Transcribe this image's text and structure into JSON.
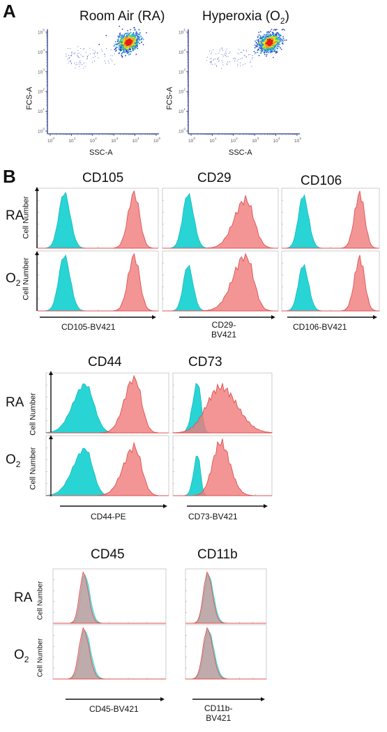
{
  "panels": {
    "a": "A",
    "b": "B"
  },
  "conditions": {
    "ra": "RA",
    "o2_main": "O",
    "o2_sub": "2"
  },
  "colors": {
    "ra": "#1ed2d2",
    "o2": "#f07a7a",
    "density_hi": "#e0201a",
    "density_mid": "#f2e21a",
    "density_lo": "#2a40c8",
    "axis": "#2a3a8a"
  },
  "scatter": {
    "ra_title": "Room Air (RA)",
    "o2_title_main": "Hyperoxia (O",
    "o2_title_sub": "2",
    "o2_title_end": ")",
    "xlabel": "SSC-A",
    "ylabel": "FCS-A",
    "tick_base": "10",
    "tick_exps": [
      "0",
      "1",
      "2",
      "3",
      "4",
      "5"
    ]
  },
  "histograms": {
    "ylabel": "Cell Number",
    "markers": [
      {
        "name": "CD105",
        "xlabel": "CD105-BV421"
      },
      {
        "name": "CD29",
        "xlabel_1": "CD29-",
        "xlabel_2": "BV421"
      },
      {
        "name": "CD106",
        "xlabel": "CD106-BV421"
      },
      {
        "name": "CD44",
        "xlabel": "CD44-PE"
      },
      {
        "name": "CD73",
        "xlabel": "CD73-BV421"
      },
      {
        "name": "CD45",
        "xlabel": "CD45-BV421"
      },
      {
        "name": "CD11b",
        "xlabel_1": "CD11b-",
        "xlabel_2": "BV421"
      }
    ]
  },
  "chart_data": [
    {
      "type": "scatter",
      "title": "Room Air (RA)",
      "xlabel": "SSC-A",
      "ylabel": "FCS-A",
      "xscale": "log",
      "yscale": "log",
      "xlim": [
        1,
        100000
      ],
      "ylim": [
        1,
        100000
      ],
      "cluster_center": [
        5000,
        30000
      ]
    },
    {
      "type": "scatter",
      "title": "Hyperoxia (O2)",
      "xlabel": "SSC-A",
      "ylabel": "FCS-A",
      "xscale": "log",
      "yscale": "log",
      "xlim": [
        1,
        100000
      ],
      "ylim": [
        1,
        100000
      ],
      "cluster_center": [
        5000,
        30000
      ]
    },
    {
      "type": "area",
      "title": "CD105",
      "xlabel": "CD105-BV421",
      "ylabel": "Cell Number",
      "conditions": [
        "RA",
        "O2"
      ],
      "series": [
        {
          "peaks": {
            "control": 0.22,
            "stained": 0.8
          }
        }
      ]
    },
    {
      "type": "area",
      "title": "CD29",
      "xlabel": "CD29-BV421",
      "ylabel": "Cell Number",
      "conditions": [
        "RA",
        "O2"
      ],
      "series": [
        {
          "peaks": {
            "control": 0.22,
            "stained": 0.72
          }
        }
      ]
    },
    {
      "type": "area",
      "title": "CD106",
      "xlabel": "CD106-BV421",
      "ylabel": "Cell Number",
      "conditions": [
        "RA",
        "O2"
      ],
      "series": [
        {
          "peaks": {
            "control": 0.22,
            "stained": 0.8
          }
        }
      ]
    },
    {
      "type": "area",
      "title": "CD44",
      "xlabel": "CD44-PE",
      "ylabel": "Cell Number",
      "conditions": [
        "RA",
        "O2"
      ],
      "series": [
        {
          "peaks": {
            "control": 0.32,
            "stained": 0.72
          }
        }
      ]
    },
    {
      "type": "area",
      "title": "CD73",
      "xlabel": "CD73-BV421",
      "ylabel": "Cell Number",
      "conditions": [
        "RA",
        "O2"
      ],
      "series": [
        {
          "peaks": {
            "control": 0.25,
            "stained": 0.48
          }
        }
      ]
    },
    {
      "type": "area",
      "title": "CD45",
      "xlabel": "CD45-BV421",
      "ylabel": "Cell Number",
      "conditions": [
        "RA",
        "O2"
      ],
      "series": [
        {
          "peaks": {
            "control": 0.28,
            "stained": 0.28
          }
        }
      ]
    },
    {
      "type": "area",
      "title": "CD11b",
      "xlabel": "CD11b-BV421",
      "ylabel": "Cell Number",
      "conditions": [
        "RA",
        "O2"
      ],
      "series": [
        {
          "peaks": {
            "control": 0.28,
            "stained": 0.28
          }
        }
      ]
    }
  ]
}
